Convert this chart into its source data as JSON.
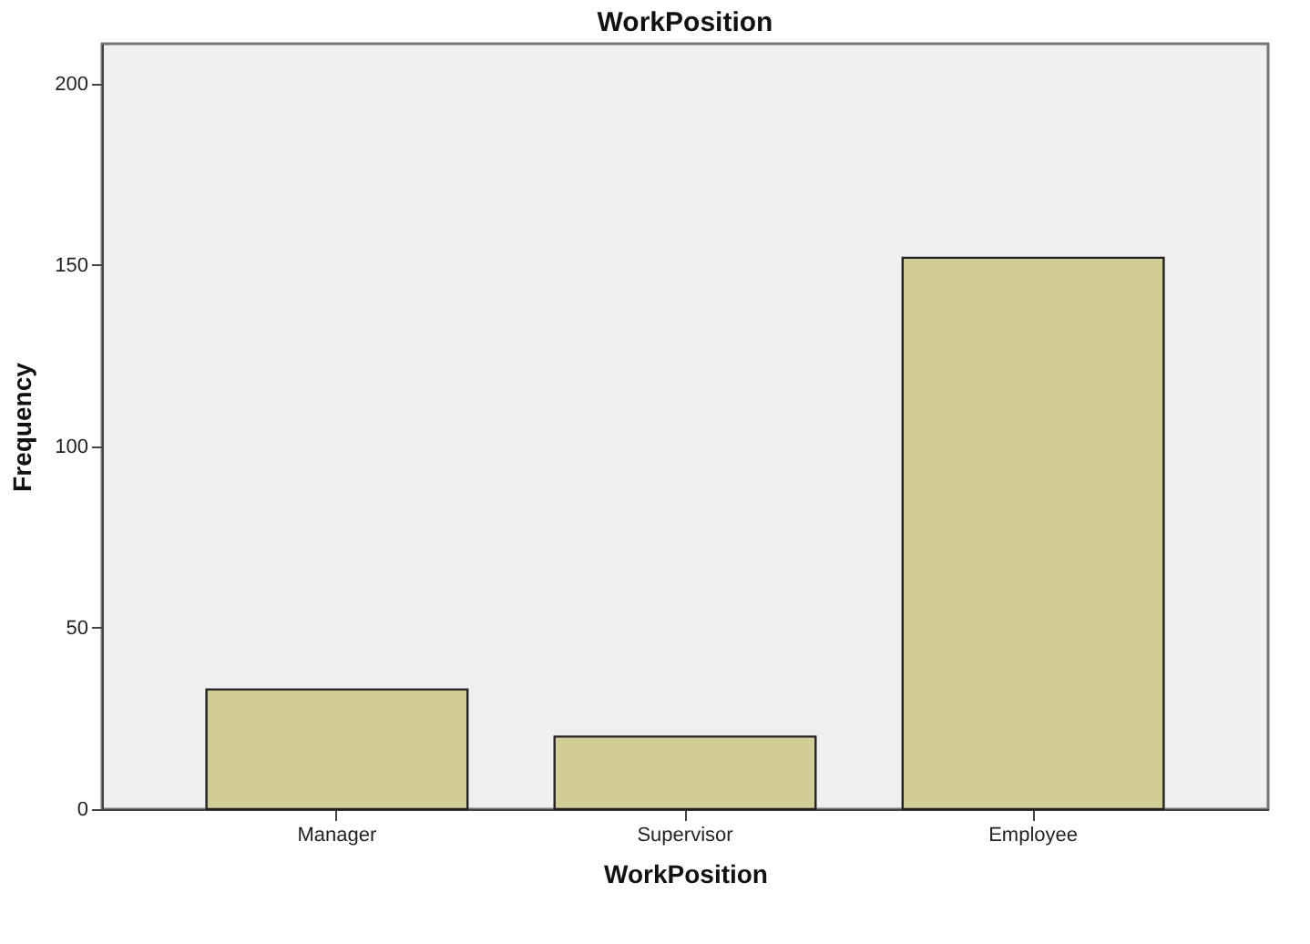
{
  "chart_data": {
    "type": "bar",
    "title": "WorkPosition",
    "xlabel": "WorkPosition",
    "ylabel": "Frequency",
    "categories": [
      "Manager",
      "Supervisor",
      "Employee"
    ],
    "values": [
      33,
      20,
      152
    ],
    "color": "#d2cc96",
    "ylim": [
      0,
      211
    ],
    "yticks": [
      0,
      50,
      100,
      150,
      200
    ],
    "grid": false
  }
}
